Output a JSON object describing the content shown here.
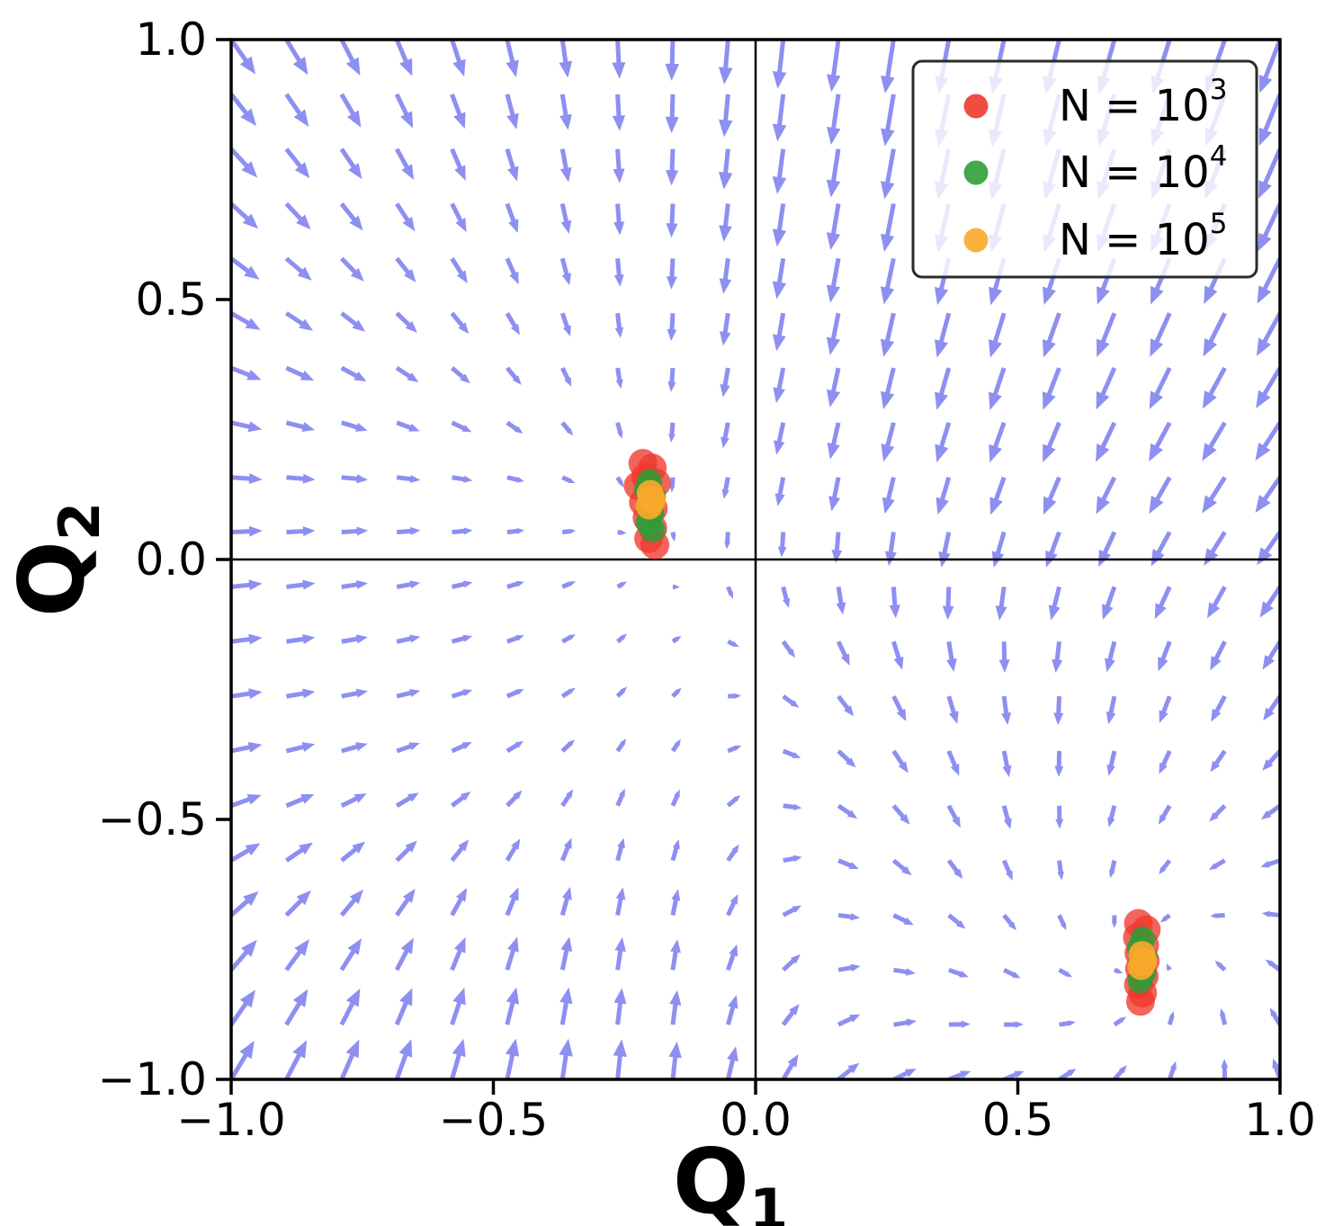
{
  "figure": {
    "kind": "quiver-and-scatter phase portrait",
    "background": "#ffffff",
    "frame_color": "#000000",
    "zero_line_color": "#000000"
  },
  "axes": {
    "xlabel": {
      "base": "Q",
      "sub": "1"
    },
    "ylabel": {
      "base": "Q",
      "sub": "2"
    },
    "xlim": [
      -1.0,
      1.0
    ],
    "ylim": [
      -1.0,
      1.0
    ],
    "xticks": [
      {
        "v": -1.0,
        "label": "−1.0"
      },
      {
        "v": -0.5,
        "label": "−0.5"
      },
      {
        "v": 0.0,
        "label": "0.0"
      },
      {
        "v": 0.5,
        "label": "0.5"
      },
      {
        "v": 1.0,
        "label": "1.0"
      }
    ],
    "yticks": [
      {
        "v": -1.0,
        "label": "−1.0"
      },
      {
        "v": -0.5,
        "label": "−0.5"
      },
      {
        "v": 0.0,
        "label": "0.0"
      },
      {
        "v": 0.5,
        "label": "0.5"
      },
      {
        "v": 1.0,
        "label": "1.0"
      }
    ]
  },
  "chart_data": {
    "type": "quiver+scatter",
    "vector_field": {
      "grid": {
        "n": 20,
        "xmin": -1,
        "xmax": 1,
        "ymin": -1,
        "ymax": 1
      },
      "color": "#8487ef",
      "opacity": 0.92,
      "attractors": [
        [
          -0.2,
          0.1
        ],
        [
          0.74,
          -0.77
        ]
      ],
      "params": {
        "beta": 10,
        "x_target_upper": -0.2,
        "x_target_lower_left": -0.2,
        "x_target_lower_right": 0.75,
        "y_target_left": 0.1,
        "y_target_right": -0.78,
        "gain_x": 0.75,
        "gain_y": 0.95,
        "upper_right_vx_damp": 0.28,
        "vy_suppression": {
          "amp": 0.75,
          "y0": -0.28,
          "width": 0.42
        },
        "swirl": {
          "center": [
            0.74,
            -0.77
          ],
          "strength": 0.6,
          "sigma2": 0.25
        }
      }
    },
    "series": [
      {
        "name": "N = 10^3",
        "legend_base": "N = 10",
        "legend_exp": "3",
        "color": "#f0382e",
        "alpha": 0.78,
        "marker_r": 16,
        "points": [
          [
            -0.215,
            0.185
          ],
          [
            -0.197,
            0.176
          ],
          [
            -0.21,
            0.158
          ],
          [
            -0.224,
            0.142
          ],
          [
            -0.189,
            0.147
          ],
          [
            -0.202,
            0.128
          ],
          [
            -0.214,
            0.11
          ],
          [
            -0.195,
            0.098
          ],
          [
            -0.207,
            0.08
          ],
          [
            -0.196,
            0.06
          ],
          [
            -0.204,
            0.04
          ],
          [
            -0.192,
            0.028
          ],
          [
            0.73,
            -0.7
          ],
          [
            0.745,
            -0.712
          ],
          [
            0.728,
            -0.727
          ],
          [
            0.742,
            -0.742
          ],
          [
            0.731,
            -0.757
          ],
          [
            0.743,
            -0.772
          ],
          [
            0.732,
            -0.787
          ],
          [
            0.741,
            -0.802
          ],
          [
            0.73,
            -0.818
          ],
          [
            0.738,
            -0.834
          ],
          [
            0.734,
            -0.85
          ]
        ]
      },
      {
        "name": "N = 10^4",
        "legend_base": "N = 10",
        "legend_exp": "4",
        "color": "#2f9e37",
        "alpha": 0.85,
        "marker_r": 14,
        "points": [
          [
            -0.202,
            0.15
          ],
          [
            -0.208,
            0.134
          ],
          [
            -0.195,
            0.121
          ],
          [
            -0.204,
            0.104
          ],
          [
            -0.198,
            0.089
          ],
          [
            -0.205,
            0.071
          ],
          [
            -0.196,
            0.057
          ],
          [
            0.738,
            -0.73
          ],
          [
            0.732,
            -0.748
          ],
          [
            0.742,
            -0.763
          ],
          [
            0.734,
            -0.779
          ],
          [
            0.74,
            -0.795
          ],
          [
            0.733,
            -0.81
          ]
        ]
      },
      {
        "name": "N = 10^5",
        "legend_base": "N = 10",
        "legend_exp": "5",
        "color": "#f9a82b",
        "alpha": 0.92,
        "marker_r": 15,
        "points": [
          [
            -0.201,
            0.127
          ],
          [
            -0.197,
            0.114
          ],
          [
            -0.203,
            0.103
          ],
          [
            -0.199,
            0.117
          ],
          [
            0.737,
            -0.76
          ],
          [
            0.74,
            -0.772
          ],
          [
            0.735,
            -0.783
          ],
          [
            0.739,
            -0.775
          ]
        ]
      }
    ],
    "legend": {
      "position": "upper right",
      "background": "rgba(255,255,255,0.8)",
      "border_color": "#2b2b2b"
    }
  }
}
